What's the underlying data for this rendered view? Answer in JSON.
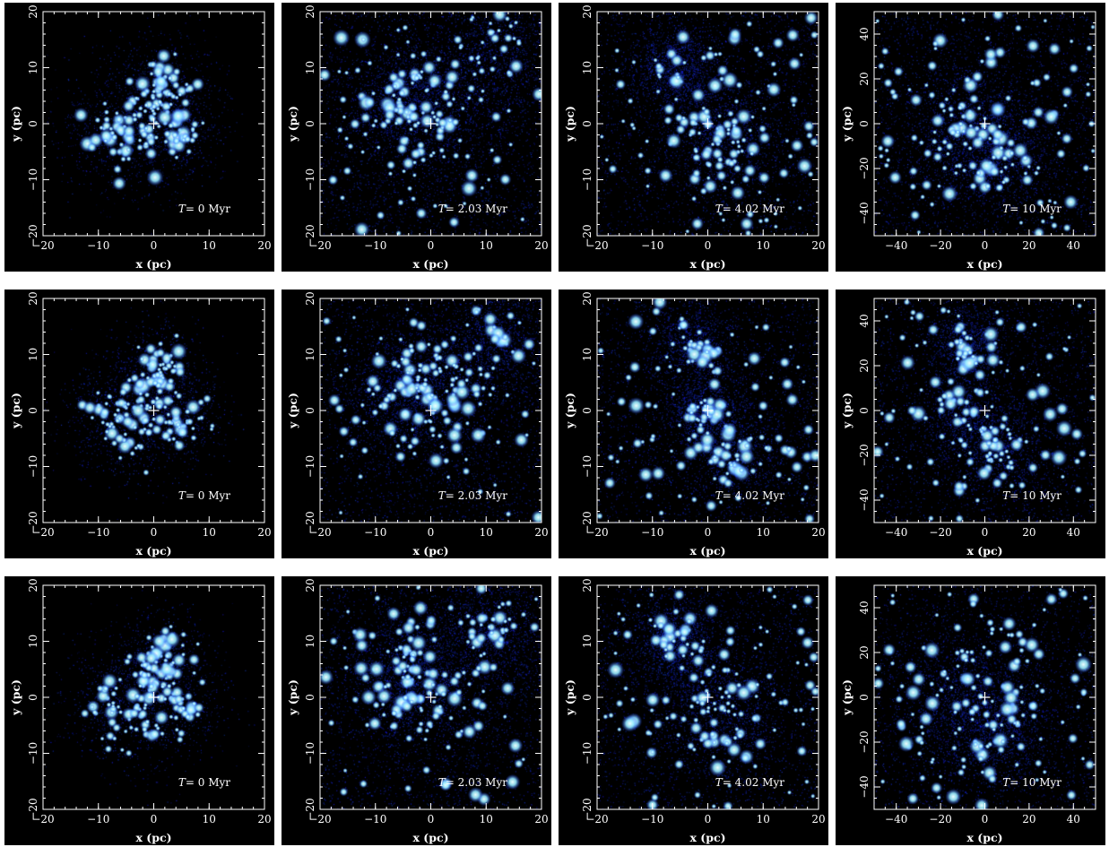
{
  "figure": {
    "axis_labels": {
      "x": "x (pc)",
      "y": "y (pc)"
    },
    "time_prefix": "T",
    "time_unit": "Myr",
    "rows": [
      {
        "panels": [
          {
            "time": "0",
            "ticks": [
              -20,
              -10,
              0,
              10,
              20
            ],
            "range": [
              -20,
              20
            ]
          },
          {
            "time": "2.03",
            "ticks": [
              -20,
              -10,
              0,
              10,
              20
            ],
            "range": [
              -20,
              20
            ]
          },
          {
            "time": "4.02",
            "ticks": [
              -20,
              -10,
              0,
              10,
              20
            ],
            "range": [
              -20,
              20
            ]
          },
          {
            "time": "10",
            "ticks": [
              -40,
              -20,
              0,
              20,
              40
            ],
            "range": [
              -50,
              50
            ]
          }
        ]
      },
      {
        "panels": [
          {
            "time": "0",
            "ticks": [
              -20,
              -10,
              0,
              10,
              20
            ],
            "range": [
              -20,
              20
            ]
          },
          {
            "time": "2.03",
            "ticks": [
              -20,
              -10,
              0,
              10,
              20
            ],
            "range": [
              -20,
              20
            ]
          },
          {
            "time": "4.02",
            "ticks": [
              -20,
              -10,
              0,
              10,
              20
            ],
            "range": [
              -20,
              20
            ]
          },
          {
            "time": "10",
            "ticks": [
              -40,
              -20,
              0,
              20,
              40
            ],
            "range": [
              -50,
              50
            ]
          }
        ]
      },
      {
        "panels": [
          {
            "time": "0",
            "ticks": [
              -20,
              -10,
              0,
              10,
              20
            ],
            "range": [
              -20,
              20
            ]
          },
          {
            "time": "2.03",
            "ticks": [
              -20,
              -10,
              0,
              10,
              20
            ],
            "range": [
              -20,
              20
            ]
          },
          {
            "time": "4.02",
            "ticks": [
              -20,
              -10,
              0,
              10,
              20
            ],
            "range": [
              -20,
              20
            ]
          },
          {
            "time": "10",
            "ticks": [
              -40,
              -20,
              0,
              20,
              40
            ],
            "range": [
              -50,
              50
            ]
          }
        ]
      }
    ],
    "colors": {
      "background": "#000000",
      "diffuse_star": "#1020c8",
      "bright_star": "#e8ffff",
      "frame": "#ffffff"
    }
  }
}
